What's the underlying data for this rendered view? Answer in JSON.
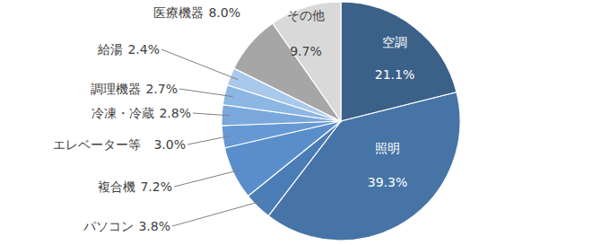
{
  "chart_data": {
    "type": "pie",
    "categories": [
      "空調",
      "照明",
      "パソコン",
      "複合機",
      "エレベーター等",
      "冷凍・冷蔵",
      "調理機器",
      "給湯",
      "医療機器",
      "その他"
    ],
    "values": [
      21.1,
      39.3,
      3.8,
      7.2,
      3.0,
      2.8,
      2.7,
      2.4,
      8.0,
      9.7
    ],
    "value_labels": [
      "21.1%",
      "39.3%",
      "3.8%",
      "7.2%",
      "3.0%",
      "2.8%",
      "2.7%",
      "2.4%",
      "8.0%",
      "9.7%"
    ],
    "colors": [
      "#3b6189",
      "#4674a6",
      "#4a7cb5",
      "#5a8ecb",
      "#6699d4",
      "#7aa8dc",
      "#8cb6e4",
      "#a9c9ec",
      "#a6a6a6",
      "#d9d9d9"
    ],
    "data_labels": true
  }
}
